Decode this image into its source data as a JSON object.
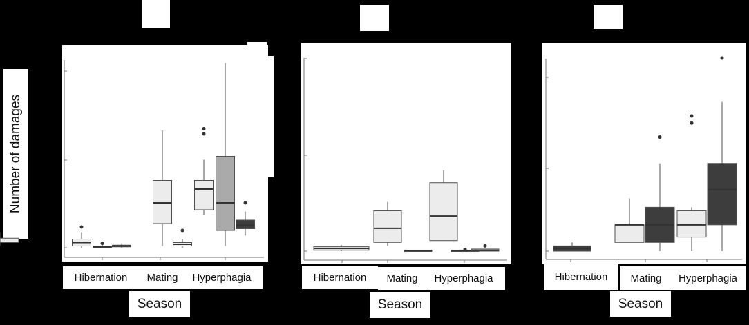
{
  "colors": {
    "background": "#000000",
    "panel": "#ffffff",
    "light_box": "#ececec",
    "mid_box": "#aaaaaa",
    "dark_box": "#3d3d3d",
    "line": "#505050",
    "axis": "#777777"
  },
  "y_label": "Number of damages",
  "chart_data": [
    {
      "type": "box",
      "xlabel": "Season",
      "categories": [
        "Hibernation",
        "Mating",
        "Hyperphagia"
      ],
      "ylim": [
        0,
        110
      ],
      "groups": [
        {
          "category": "Hibernation",
          "boxes": [
            {
              "shade": "light",
              "min": 0,
              "q1": 1,
              "median": 3,
              "q3": 5,
              "max": 9,
              "outliers": [
                12
              ]
            },
            {
              "shade": "light",
              "min": 0,
              "q1": 0,
              "median": 0.5,
              "q3": 1,
              "max": 2,
              "outliers": [
                2.5
              ]
            },
            {
              "shade": "light",
              "min": 0,
              "q1": 0.5,
              "median": 1,
              "q3": 1.5,
              "max": 2.5,
              "outliers": []
            }
          ]
        },
        {
          "category": "Mating",
          "boxes": [
            {
              "shade": "light",
              "min": 1,
              "q1": 14,
              "median": 26,
              "q3": 39,
              "max": 68,
              "outliers": []
            },
            {
              "shade": "light",
              "min": 0,
              "q1": 1,
              "median": 2,
              "q3": 3,
              "max": 5,
              "outliers": [
                10
              ]
            },
            {
              "shade": "light",
              "min": 1,
              "q1": 3,
              "median": 4,
              "q3": 5.5,
              "max": 9,
              "outliers": []
            }
          ]
        },
        {
          "category": "Hyperphagia",
          "boxes": [
            {
              "shade": "light",
              "min": 19,
              "q1": 22,
              "median": 34,
              "q3": 39,
              "max": 51,
              "outliers": [
                66,
                69
              ]
            },
            {
              "shade": "mid",
              "min": 1,
              "q1": 10,
              "median": 26,
              "q3": 53,
              "max": 107,
              "outliers": []
            },
            {
              "shade": "dark",
              "min": 7,
              "q1": 11,
              "median": 13,
              "q3": 16,
              "max": 21,
              "outliers": [
                26
              ]
            }
          ]
        }
      ]
    },
    {
      "type": "box",
      "xlabel": "Season",
      "categories": [
        "Hibernation",
        "Mating",
        "Hyperphagia"
      ],
      "ylim": [
        0,
        110
      ],
      "groups": [
        {
          "category": "Hibernation",
          "boxes": [
            {
              "shade": "light",
              "min": 0,
              "q1": 0.5,
              "median": 1.5,
              "q3": 2.5,
              "max": 3.5,
              "outliers": [],
              "wide": true
            }
          ]
        },
        {
          "category": "Mating",
          "boxes": [
            {
              "shade": "light",
              "min": 3,
              "q1": 5,
              "median": 13,
              "q3": 23,
              "max": 28,
              "outliers": []
            },
            {
              "shade": "light",
              "min": 0,
              "q1": 0,
              "median": 0.3,
              "q3": 0.6,
              "max": 0.6,
              "outliers": []
            }
          ]
        },
        {
          "category": "Hyperphagia",
          "boxes": [
            {
              "shade": "light",
              "min": 6,
              "q1": 6,
              "median": 20,
              "q3": 39,
              "max": 46,
              "outliers": []
            },
            {
              "shade": "light",
              "min": 0,
              "q1": 0,
              "median": 0.3,
              "q3": 0.6,
              "max": 0.6,
              "outliers": [
                1
              ]
            },
            {
              "shade": "light",
              "min": 0,
              "q1": 0,
              "median": 0.5,
              "q3": 1.2,
              "max": 1.2,
              "outliers": [
                3
              ]
            }
          ]
        }
      ]
    },
    {
      "type": "box",
      "xlabel": "Season",
      "categories": [
        "Hibernation",
        "Mating",
        "Hyperphagia"
      ],
      "ylim": [
        0,
        110
      ],
      "groups": [
        {
          "category": "Hibernation",
          "boxes": [
            {
              "shade": "dark",
              "min": 0,
              "q1": 0,
              "median": 1.5,
              "q3": 3,
              "max": 5,
              "outliers": [],
              "wide": true
            }
          ]
        },
        {
          "category": "Mating",
          "boxes": [
            {
              "shade": "light",
              "min": 5,
              "q1": 5,
              "median": 15,
              "q3": 15,
              "max": 30,
              "outliers": []
            },
            {
              "shade": "dark",
              "min": 0,
              "q1": 5,
              "median": 15,
              "q3": 25,
              "max": 50,
              "outliers": [
                65
              ]
            }
          ]
        },
        {
          "category": "Hyperphagia",
          "boxes": [
            {
              "shade": "light",
              "min": 0,
              "q1": 8,
              "median": 15,
              "q3": 23,
              "max": 25,
              "outliers": [
                73,
                77
              ]
            },
            {
              "shade": "dark",
              "min": 0,
              "q1": 15,
              "median": 35,
              "q3": 50,
              "max": 85,
              "outliers": [
                110
              ]
            }
          ]
        }
      ]
    }
  ]
}
